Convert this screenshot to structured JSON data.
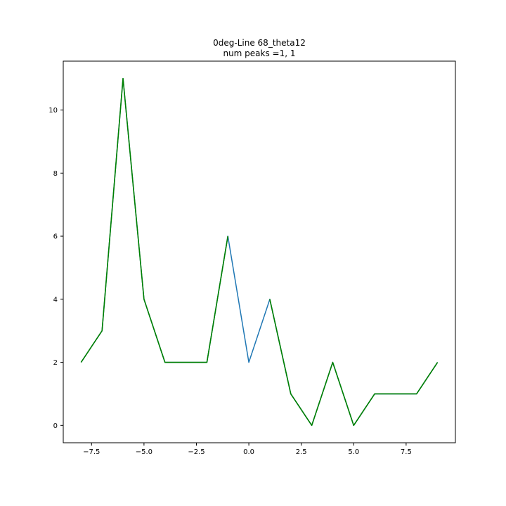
{
  "chart_data": {
    "type": "line",
    "title": "0deg-Line 68_theta12",
    "subtitle": "num peaks =1, 1",
    "xlabel": "",
    "ylabel": "",
    "xlim": [
      -8.85,
      9.85
    ],
    "ylim": [
      -0.55,
      11.55
    ],
    "x_ticks": [
      -7.5,
      -5.0,
      -2.5,
      0.0,
      2.5,
      5.0,
      7.5
    ],
    "x_tick_labels": [
      "−7.5",
      "−5.0",
      "−2.5",
      "0.0",
      "2.5",
      "5.0",
      "7.5"
    ],
    "y_ticks": [
      0,
      2,
      4,
      6,
      8,
      10
    ],
    "y_tick_labels": [
      "0",
      "2",
      "4",
      "6",
      "8",
      "10"
    ],
    "grid": false,
    "legend": "none",
    "series": [
      {
        "color": "#1f77b4",
        "x": [
          -8,
          -7,
          -6,
          -5,
          -4,
          -3,
          -2,
          -1,
          0,
          1,
          2,
          3,
          4,
          5,
          6,
          7,
          8,
          9
        ],
        "y": [
          2,
          3,
          11,
          4,
          2,
          2,
          2,
          6,
          2,
          4,
          1,
          0,
          2,
          0,
          1,
          1,
          1,
          2
        ]
      },
      {
        "color": "#008000",
        "segments": [
          {
            "x": [
              -8,
              -7,
              -6,
              -5,
              -4,
              -3,
              -2,
              -1
            ],
            "y": [
              2,
              3,
              11,
              4,
              2,
              2,
              2,
              6
            ]
          },
          {
            "x": [
              1,
              2,
              3,
              4,
              5,
              6,
              7,
              8,
              9
            ],
            "y": [
              4,
              1,
              0,
              2,
              0,
              1,
              1,
              1,
              2
            ]
          }
        ]
      }
    ]
  }
}
